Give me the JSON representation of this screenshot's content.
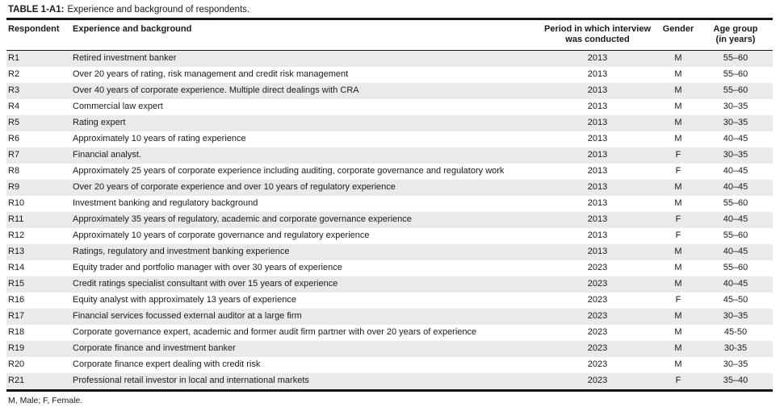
{
  "title": {
    "label": "TABLE 1-A1:",
    "text": "Experience and background of respondents."
  },
  "colors": {
    "stripe": "#eaeaec",
    "rule": "#141414",
    "text": "#1a1a1a"
  },
  "table": {
    "columns": [
      {
        "lines": [
          "Respondent"
        ]
      },
      {
        "lines": [
          "Experience and background"
        ]
      },
      {
        "lines": [
          "Period in which interview",
          "was conducted"
        ]
      },
      {
        "lines": [
          "Gender"
        ]
      },
      {
        "lines": [
          "Age group",
          "(in years)"
        ]
      }
    ],
    "rows": [
      {
        "id": "R1",
        "experience": "Retired investment banker",
        "period": "2013",
        "gender": "M",
        "age": "55–60"
      },
      {
        "id": "R2",
        "experience": "Over 20 years of rating, risk management and credit risk management",
        "period": "2013",
        "gender": "M",
        "age": "55–60"
      },
      {
        "id": "R3",
        "experience": "Over 40 years of corporate experience. Multiple direct dealings with CRA",
        "period": "2013",
        "gender": "M",
        "age": "55–60"
      },
      {
        "id": "R4",
        "experience": "Commercial law expert",
        "period": "2013",
        "gender": "M",
        "age": "30–35"
      },
      {
        "id": "R5",
        "experience": "Rating expert",
        "period": "2013",
        "gender": "M",
        "age": "30–35"
      },
      {
        "id": "R6",
        "experience": "Approximately 10 years of rating experience",
        "period": "2013",
        "gender": "M",
        "age": "40–45"
      },
      {
        "id": "R7",
        "experience": "Financial analyst.",
        "period": "2013",
        "gender": "F",
        "age": "30–35"
      },
      {
        "id": "R8",
        "experience": "Approximately 25 years of corporate experience including auditing, corporate governance and regulatory work",
        "period": "2013",
        "gender": "F",
        "age": "40–45"
      },
      {
        "id": "R9",
        "experience": "Over 20 years of corporate experience and over 10 years of regulatory experience",
        "period": "2013",
        "gender": "M",
        "age": "40–45"
      },
      {
        "id": "R10",
        "experience": "Investment banking and regulatory background",
        "period": "2013",
        "gender": "M",
        "age": "55–60"
      },
      {
        "id": "R11",
        "experience": "Approximately 35 years of regulatory, academic and corporate governance experience",
        "period": "2013",
        "gender": "F",
        "age": "40–45"
      },
      {
        "id": "R12",
        "experience": "Approximately 10 years of corporate governance and regulatory experience",
        "period": "2013",
        "gender": "F",
        "age": "55–60"
      },
      {
        "id": "R13",
        "experience": "Ratings, regulatory and investment banking experience",
        "period": "2013",
        "gender": "M",
        "age": "40–45"
      },
      {
        "id": "R14",
        "experience": "Equity trader and portfolio manager with over 30 years of experience",
        "period": "2023",
        "gender": "M",
        "age": "55–60"
      },
      {
        "id": "R15",
        "experience": "Credit ratings specialist consultant with over 15 years of experience",
        "period": "2023",
        "gender": "M",
        "age": "40–45"
      },
      {
        "id": "R16",
        "experience": "Equity analyst with approximately 13 years of experience",
        "period": "2023",
        "gender": "F",
        "age": "45–50"
      },
      {
        "id": "R17",
        "experience": "Financial services focussed external auditor at a large firm",
        "period": "2023",
        "gender": "M",
        "age": "30–35"
      },
      {
        "id": "R18",
        "experience": "Corporate governance expert, academic and former audit firm partner with over 20 years of experience",
        "period": "2023",
        "gender": "M",
        "age": "45-50"
      },
      {
        "id": "R19",
        "experience": "Corporate finance and investment banker",
        "period": "2023",
        "gender": "M",
        "age": "30-35"
      },
      {
        "id": "R20",
        "experience": "Corporate finance expert dealing with credit risk",
        "period": "2023",
        "gender": "M",
        "age": "30–35"
      },
      {
        "id": "R21",
        "experience": "Professional retail investor in local and international markets",
        "period": "2023",
        "gender": "F",
        "age": "35–40"
      }
    ]
  },
  "footnote": "M, Male; F, Female."
}
